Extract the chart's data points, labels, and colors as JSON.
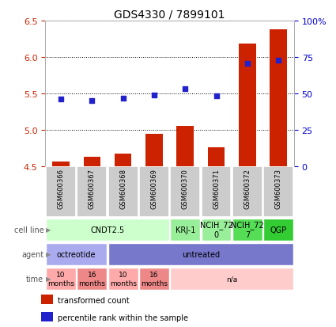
{
  "title": "GDS4330 / 7899101",
  "samples": [
    "GSM600366",
    "GSM600367",
    "GSM600368",
    "GSM600369",
    "GSM600370",
    "GSM600371",
    "GSM600372",
    "GSM600373"
  ],
  "bar_values": [
    4.57,
    4.63,
    4.68,
    4.95,
    5.06,
    4.76,
    6.18,
    6.38
  ],
  "dot_values": [
    5.42,
    5.4,
    5.44,
    5.48,
    5.56,
    5.47,
    5.91,
    5.96
  ],
  "ylim_left": [
    4.5,
    6.5
  ],
  "ylim_right": [
    0,
    100
  ],
  "yticks_left": [
    4.5,
    5.0,
    5.5,
    6.0,
    6.5
  ],
  "yticks_right": [
    0,
    25,
    50,
    75,
    100
  ],
  "ytick_labels_right": [
    "0",
    "25",
    "50",
    "75",
    "100%"
  ],
  "bar_color": "#cc2200",
  "dot_color": "#2222cc",
  "bar_bottom": 4.5,
  "cell_line_groups": [
    {
      "label": "CNDT2.5",
      "start": 0,
      "end": 4,
      "color": "#ccffcc"
    },
    {
      "label": "KRJ-1",
      "start": 4,
      "end": 5,
      "color": "#99ee99"
    },
    {
      "label": "NCIH_72\n0",
      "start": 5,
      "end": 6,
      "color": "#99ee99"
    },
    {
      "label": "NCIH_72\n7",
      "start": 6,
      "end": 7,
      "color": "#55dd55"
    },
    {
      "label": "QGP",
      "start": 7,
      "end": 8,
      "color": "#33cc33"
    }
  ],
  "agent_groups": [
    {
      "label": "octreotide",
      "start": 0,
      "end": 2,
      "color": "#aaaaee"
    },
    {
      "label": "untreated",
      "start": 2,
      "end": 8,
      "color": "#7777cc"
    }
  ],
  "time_groups": [
    {
      "label": "10\nmonths",
      "start": 0,
      "end": 1,
      "color": "#ffaaaa"
    },
    {
      "label": "16\nmonths",
      "start": 1,
      "end": 2,
      "color": "#ee8888"
    },
    {
      "label": "10\nmonths",
      "start": 2,
      "end": 3,
      "color": "#ffaaaa"
    },
    {
      "label": "16\nmonths",
      "start": 3,
      "end": 4,
      "color": "#ee8888"
    },
    {
      "label": "n/a",
      "start": 4,
      "end": 8,
      "color": "#ffcccc"
    }
  ],
  "row_labels": [
    "cell line",
    "agent",
    "time"
  ],
  "row_label_color": "#555555",
  "axis_color_left": "#cc2200",
  "axis_color_right": "#0000cc",
  "sample_bg_color": "#cccccc",
  "bg_color": "#ffffff",
  "legend_items": [
    {
      "color": "#cc2200",
      "label": "transformed count"
    },
    {
      "color": "#2222cc",
      "label": "percentile rank within the sample"
    }
  ]
}
